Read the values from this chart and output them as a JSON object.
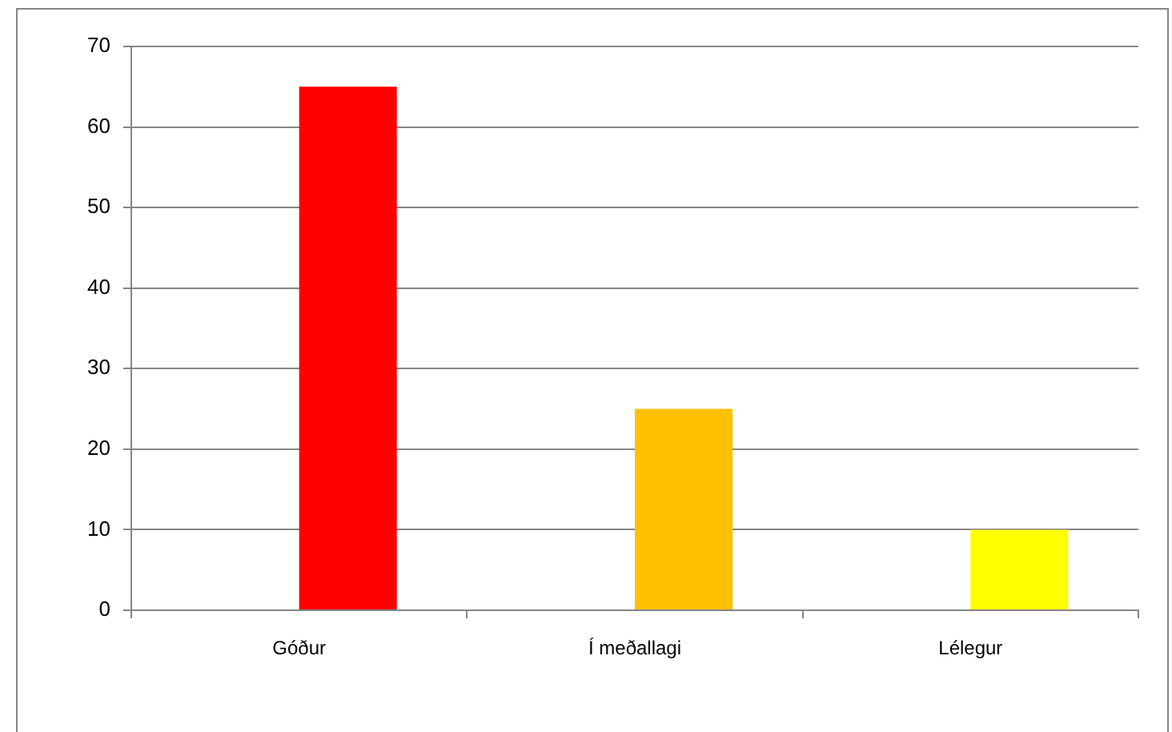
{
  "chart_data": {
    "type": "bar",
    "categories": [
      "Góður",
      "Í meðallagi",
      "Lélegur"
    ],
    "values": [
      65,
      25,
      10
    ],
    "colors": [
      "#ff0000",
      "#ffc000",
      "#ffff00"
    ],
    "ylim": [
      0,
      70
    ],
    "yticks": [
      0,
      10,
      20,
      30,
      40,
      50,
      60,
      70
    ],
    "grid": "y"
  }
}
